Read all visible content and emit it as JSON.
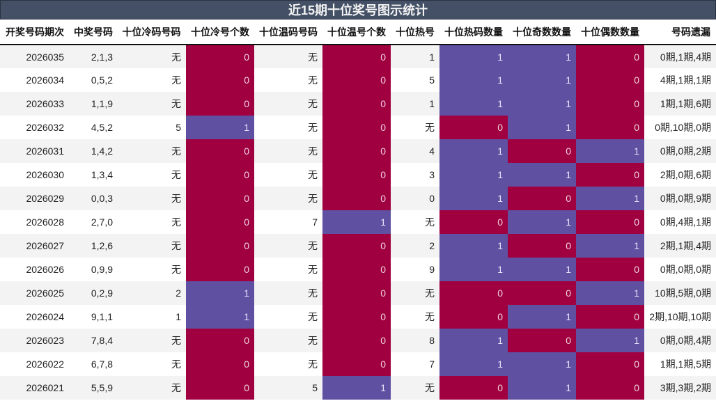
{
  "title": "近15期十位奖号图示统计",
  "colors": {
    "header_bg": "#435066",
    "one": "#5f50a2",
    "zero": "#a00040",
    "stripe": "#f3f3f3"
  },
  "columns": [
    "开奖号码期次",
    "中奖号码",
    "十位冷码号码",
    "十位冷号个数",
    "十位温码号码",
    "十位温号个数",
    "十位热号",
    "十位热码数量",
    "十位奇数数量",
    "十位偶数数量",
    "号码遗漏"
  ],
  "rows": [
    {
      "period": "2026035",
      "win": "2,1,3",
      "cold": "无",
      "cold_n": "0",
      "warm": "无",
      "warm_n": "0",
      "hot": "1",
      "hot_n": "1",
      "odd_n": "1",
      "even_n": "0",
      "miss": "0期,1期,4期"
    },
    {
      "period": "2026034",
      "win": "0,5,2",
      "cold": "无",
      "cold_n": "0",
      "warm": "无",
      "warm_n": "0",
      "hot": "5",
      "hot_n": "1",
      "odd_n": "1",
      "even_n": "0",
      "miss": "4期,1期,1期"
    },
    {
      "period": "2026033",
      "win": "1,1,9",
      "cold": "无",
      "cold_n": "0",
      "warm": "无",
      "warm_n": "0",
      "hot": "1",
      "hot_n": "1",
      "odd_n": "1",
      "even_n": "0",
      "miss": "1期,1期,6期"
    },
    {
      "period": "2026032",
      "win": "4,5,2",
      "cold": "5",
      "cold_n": "1",
      "warm": "无",
      "warm_n": "0",
      "hot": "无",
      "hot_n": "0",
      "odd_n": "1",
      "even_n": "0",
      "miss": "0期,10期,0期"
    },
    {
      "period": "2026031",
      "win": "1,4,2",
      "cold": "无",
      "cold_n": "0",
      "warm": "无",
      "warm_n": "0",
      "hot": "4",
      "hot_n": "1",
      "odd_n": "0",
      "even_n": "1",
      "miss": "0期,0期,2期"
    },
    {
      "period": "2026030",
      "win": "1,3,4",
      "cold": "无",
      "cold_n": "0",
      "warm": "无",
      "warm_n": "0",
      "hot": "3",
      "hot_n": "1",
      "odd_n": "1",
      "even_n": "0",
      "miss": "2期,0期,6期"
    },
    {
      "period": "2026029",
      "win": "0,0,3",
      "cold": "无",
      "cold_n": "0",
      "warm": "无",
      "warm_n": "0",
      "hot": "0",
      "hot_n": "1",
      "odd_n": "0",
      "even_n": "1",
      "miss": "0期,0期,9期"
    },
    {
      "period": "2026028",
      "win": "2,7,0",
      "cold": "无",
      "cold_n": "0",
      "warm": "7",
      "warm_n": "1",
      "hot": "无",
      "hot_n": "0",
      "odd_n": "1",
      "even_n": "0",
      "miss": "0期,4期,1期"
    },
    {
      "period": "2026027",
      "win": "1,2,6",
      "cold": "无",
      "cold_n": "0",
      "warm": "无",
      "warm_n": "0",
      "hot": "2",
      "hot_n": "1",
      "odd_n": "0",
      "even_n": "1",
      "miss": "2期,1期,4期"
    },
    {
      "period": "2026026",
      "win": "0,9,9",
      "cold": "无",
      "cold_n": "0",
      "warm": "无",
      "warm_n": "0",
      "hot": "9",
      "hot_n": "1",
      "odd_n": "1",
      "even_n": "0",
      "miss": "0期,0期,0期"
    },
    {
      "period": "2026025",
      "win": "0,2,9",
      "cold": "2",
      "cold_n": "1",
      "warm": "无",
      "warm_n": "0",
      "hot": "无",
      "hot_n": "0",
      "odd_n": "0",
      "even_n": "1",
      "miss": "10期,5期,0期"
    },
    {
      "period": "2026024",
      "win": "9,1,1",
      "cold": "1",
      "cold_n": "1",
      "warm": "无",
      "warm_n": "0",
      "hot": "无",
      "hot_n": "0",
      "odd_n": "1",
      "even_n": "0",
      "miss": "2期,10期,10期"
    },
    {
      "period": "2026023",
      "win": "7,8,4",
      "cold": "无",
      "cold_n": "0",
      "warm": "无",
      "warm_n": "0",
      "hot": "8",
      "hot_n": "1",
      "odd_n": "0",
      "even_n": "1",
      "miss": "0期,0期,4期"
    },
    {
      "period": "2026022",
      "win": "6,7,8",
      "cold": "无",
      "cold_n": "0",
      "warm": "无",
      "warm_n": "0",
      "hot": "7",
      "hot_n": "1",
      "odd_n": "1",
      "even_n": "0",
      "miss": "1期,1期,5期"
    },
    {
      "period": "2026021",
      "win": "5,5,9",
      "cold": "无",
      "cold_n": "0",
      "warm": "5",
      "warm_n": "1",
      "hot": "无",
      "hot_n": "0",
      "odd_n": "1",
      "even_n": "0",
      "miss": "3期,3期,2期"
    }
  ]
}
